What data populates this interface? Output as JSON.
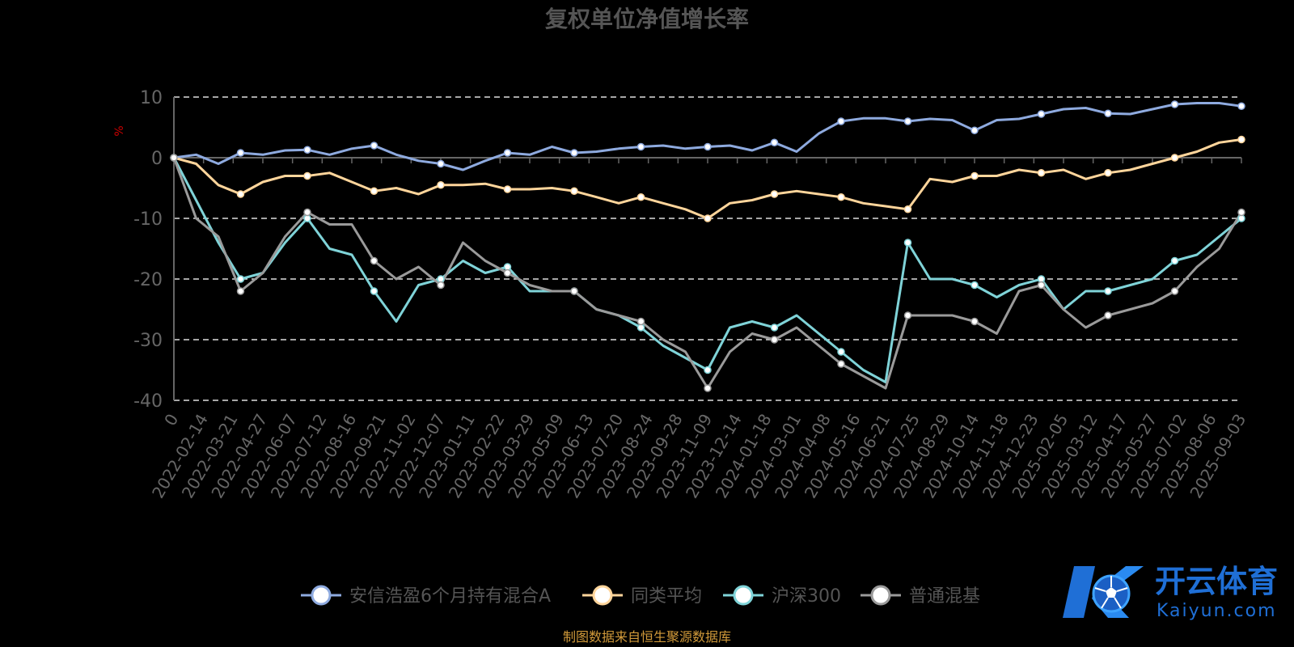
{
  "colors": {
    "background": "#000000",
    "fund": "#8eaadf",
    "peer": "#ffd59b",
    "hs300": "#7fd3d8",
    "mixed": "#9a9a9a",
    "source_text": "#d19a3a",
    "unit_text": "#cc0000"
  },
  "watermark": {
    "brand_cn": "开云体育",
    "brand_en": "Kaiyun.com",
    "logo": "K-ball-logo"
  },
  "chart_data": {
    "type": "line",
    "title": "复权单位净值增长率",
    "ylabel": "%",
    "ylim": [
      -40,
      10
    ],
    "yticks": [
      10,
      0,
      -10,
      -20,
      -30,
      -40
    ],
    "grid": true,
    "legend_position": "bottom",
    "source_note": "制图数据来自恒生聚源数据库",
    "x_tick_labels": [
      "0",
      "2022-02-14",
      "2022-03-21",
      "2022-04-27",
      "2022-06-07",
      "2022-07-12",
      "2022-08-16",
      "2022-09-21",
      "2022-11-02",
      "2022-12-07",
      "2023-01-11",
      "2023-02-22",
      "2023-03-29",
      "2023-05-09",
      "2023-06-13",
      "2023-07-20",
      "2023-08-24",
      "2023-09-28",
      "2023-11-09",
      "2023-12-14",
      "2024-01-18",
      "2024-03-01",
      "2024-04-08",
      "2024-05-16",
      "2024-06-21",
      "2024-07-25",
      "2024-08-29",
      "2024-10-14",
      "2024-11-18",
      "2024-12-23",
      "2025-02-05",
      "2025-03-12",
      "2025-04-17",
      "2025-05-27",
      "2025-07-02",
      "2025-08-06",
      "2025-09-03"
    ],
    "series": [
      {
        "name": "安信浩盈6个月持有混合A",
        "color_key": "fund",
        "values": [
          0,
          0.5,
          -1,
          0.8,
          0.5,
          1.2,
          1.3,
          0.5,
          1.5,
          2,
          0.5,
          -0.5,
          -1,
          -2,
          -0.5,
          0.8,
          0.5,
          1.8,
          0.8,
          1,
          1.5,
          1.8,
          2,
          1.5,
          1.8,
          2,
          1.2,
          2.5,
          1,
          4,
          6,
          6.5,
          6.5,
          6,
          6.4,
          6.2,
          4.5,
          6.2,
          6.4,
          7.2,
          8,
          8.2,
          7.3,
          7.2,
          8,
          8.8,
          9,
          9,
          8.5
        ]
      },
      {
        "name": "同类平均",
        "color_key": "peer",
        "values": [
          0,
          -1,
          -4.5,
          -6,
          -4,
          -3,
          -3,
          -2.5,
          -4,
          -5.5,
          -5,
          -6,
          -4.5,
          -4.5,
          -4.3,
          -5.2,
          -5.2,
          -5,
          -5.5,
          -6.5,
          -7.5,
          -6.5,
          -7.5,
          -8.5,
          -10,
          -7.5,
          -7,
          -6,
          -5.5,
          -6,
          -6.5,
          -7.5,
          -8,
          -8.5,
          -3.5,
          -4,
          -3,
          -3,
          -2,
          -2.5,
          -2,
          -3.5,
          -2.5,
          -2,
          -1,
          0,
          1,
          2.5,
          3
        ]
      },
      {
        "name": "沪深300",
        "color_key": "hs300",
        "values": [
          0,
          -7,
          -14,
          -20,
          -19,
          -14,
          -10,
          -15,
          -16,
          -22,
          -27,
          -21,
          -20,
          -17,
          -19,
          -18,
          -22,
          -22,
          -22,
          -25,
          -26,
          -28,
          -31,
          -33,
          -35,
          -28,
          -27,
          -28,
          -26,
          -29,
          -32,
          -35,
          -37,
          -14,
          -20,
          -20,
          -21,
          -23,
          -21,
          -20,
          -25,
          -22,
          -22,
          -21,
          -20,
          -17,
          -16,
          -13,
          -10
        ]
      },
      {
        "name": "普通混基",
        "color_key": "mixed",
        "values": [
          0,
          -10,
          -13,
          -22,
          -19,
          -13,
          -9,
          -11,
          -11,
          -17,
          -20,
          -18,
          -21,
          -14,
          -17,
          -19,
          -21,
          -22,
          -22,
          -25,
          -26,
          -27,
          -30,
          -32,
          -38,
          -32,
          -29,
          -30,
          -28,
          -31,
          -34,
          -36,
          -38,
          -26,
          -26,
          -26,
          -27,
          -29,
          -22,
          -21,
          -25,
          -28,
          -26,
          -25,
          -24,
          -22,
          -18,
          -15,
          -9
        ]
      }
    ]
  }
}
